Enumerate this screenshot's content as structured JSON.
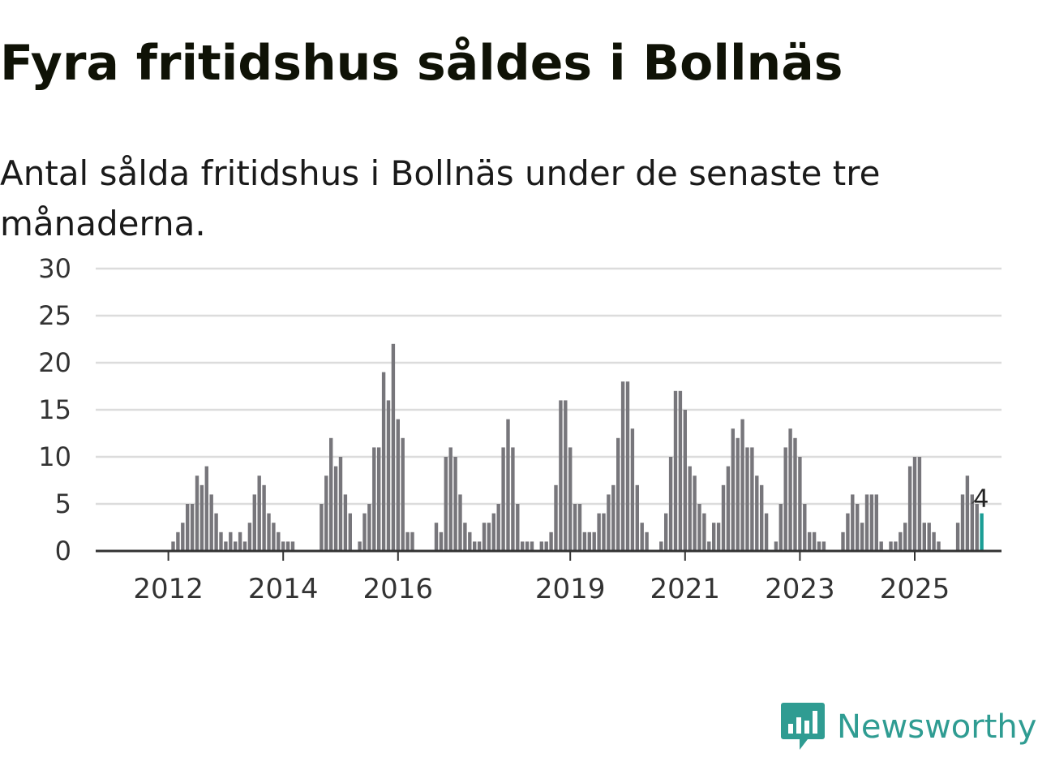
{
  "title": "Fyra fritidshus såldes i Bollnäs",
  "subtitle": "Antal sålda fritidshus i Bollnäs under de senaste tre månaderna.",
  "brand": {
    "name": "Newsworthy",
    "color": "#2f9c92",
    "icon": "newsworthy-logo-icon"
  },
  "colors": {
    "bar": "#77767b",
    "highlight": "#1b9e96",
    "grid": "#dcdcdc"
  },
  "chart_data": {
    "type": "bar",
    "title": "",
    "xlabel": "",
    "ylabel": "",
    "ylim": [
      0,
      30
    ],
    "yticks": [
      0,
      5,
      10,
      15,
      20,
      25,
      30
    ],
    "grid": true,
    "start": "2011-07",
    "xticks": [
      {
        "label": "2012",
        "month": "2012-01"
      },
      {
        "label": "2014",
        "month": "2014-01"
      },
      {
        "label": "2016",
        "month": "2016-01"
      },
      {
        "label": "2019",
        "month": "2019-01"
      },
      {
        "label": "2021",
        "month": "2021-01"
      },
      {
        "label": "2023",
        "month": "2023-01"
      },
      {
        "label": "2025",
        "month": "2025-01"
      }
    ],
    "values": [
      0,
      0,
      0,
      0,
      0,
      0,
      0,
      1,
      2,
      3,
      5,
      5,
      8,
      7,
      9,
      6,
      4,
      2,
      1,
      2,
      1,
      2,
      1,
      3,
      6,
      8,
      7,
      4,
      3,
      2,
      1,
      1,
      1,
      0,
      0,
      0,
      0,
      0,
      5,
      8,
      12,
      9,
      10,
      6,
      4,
      0,
      1,
      4,
      5,
      11,
      11,
      19,
      16,
      22,
      14,
      12,
      2,
      2,
      0,
      0,
      0,
      0,
      3,
      2,
      10,
      11,
      10,
      6,
      3,
      2,
      1,
      1,
      3,
      3,
      4,
      5,
      11,
      14,
      11,
      5,
      1,
      1,
      1,
      0,
      1,
      1,
      2,
      7,
      16,
      16,
      11,
      5,
      5,
      2,
      2,
      2,
      4,
      4,
      6,
      7,
      12,
      18,
      18,
      13,
      7,
      3,
      2,
      0,
      0,
      1,
      4,
      10,
      17,
      17,
      15,
      9,
      8,
      5,
      4,
      1,
      3,
      3,
      7,
      9,
      13,
      12,
      14,
      11,
      11,
      8,
      7,
      4,
      0,
      1,
      5,
      11,
      13,
      12,
      10,
      5,
      2,
      2,
      1,
      1,
      0,
      0,
      0,
      2,
      4,
      6,
      5,
      3,
      6,
      6,
      6,
      1,
      0,
      1,
      1,
      2,
      3,
      9,
      10,
      10,
      3,
      3,
      2,
      1,
      0,
      0,
      0,
      3,
      6,
      8,
      6,
      5,
      4
    ],
    "last_value_label": "4"
  }
}
